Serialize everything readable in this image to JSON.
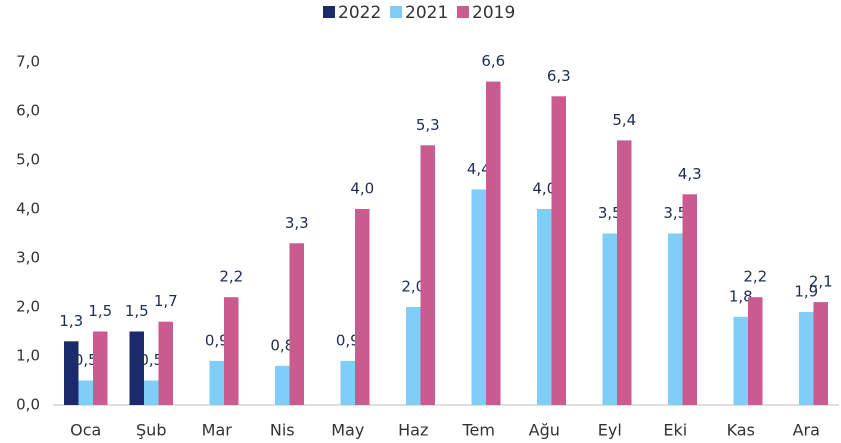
{
  "chart_data": {
    "type": "bar",
    "categories": [
      "Oca",
      "Şub",
      "Mar",
      "Nis",
      "May",
      "Haz",
      "Tem",
      "Ağu",
      "Eyl",
      "Eki",
      "Kas",
      "Ara"
    ],
    "series": [
      {
        "name": "2022",
        "color": "#1b2a6b",
        "values": [
          1.3,
          1.5,
          null,
          null,
          null,
          null,
          null,
          null,
          null,
          null,
          null,
          null
        ],
        "value_labels": [
          "1,3",
          "1,5",
          null,
          null,
          null,
          null,
          null,
          null,
          null,
          null,
          null,
          null
        ]
      },
      {
        "name": "2021",
        "color": "#80cdf8",
        "values": [
          0.5,
          0.5,
          0.9,
          0.8,
          0.9,
          2.0,
          4.4,
          4.0,
          3.5,
          3.5,
          1.8,
          1.9
        ],
        "value_labels": [
          "0,5",
          "0,5",
          "0,9",
          "0,8",
          "0,9",
          "2,0",
          "4,4",
          "4,0",
          "3,5",
          "3,5",
          "1,8",
          "1,9"
        ]
      },
      {
        "name": "2019",
        "color": "#c95b8e",
        "values": [
          1.5,
          1.7,
          2.2,
          3.3,
          4.0,
          5.3,
          6.6,
          6.3,
          5.4,
          4.3,
          2.2,
          2.1
        ],
        "value_labels": [
          "1,5",
          "1,7",
          "2,2",
          "3,3",
          "4,0",
          "5,3",
          "6,6",
          "6,3",
          "5,4",
          "4,3",
          "2,2",
          "2,1"
        ]
      }
    ],
    "ylim": [
      0,
      7
    ],
    "yticks": [
      {
        "value": 0,
        "label": "0,0"
      },
      {
        "value": 1,
        "label": "1,0"
      },
      {
        "value": 2,
        "label": "2,0"
      },
      {
        "value": 3,
        "label": "3,0"
      },
      {
        "value": 4,
        "label": "4,0"
      },
      {
        "value": 5,
        "label": "5,0"
      },
      {
        "value": 6,
        "label": "6,0"
      },
      {
        "value": 7,
        "label": "7,0"
      }
    ],
    "legend": "top"
  }
}
